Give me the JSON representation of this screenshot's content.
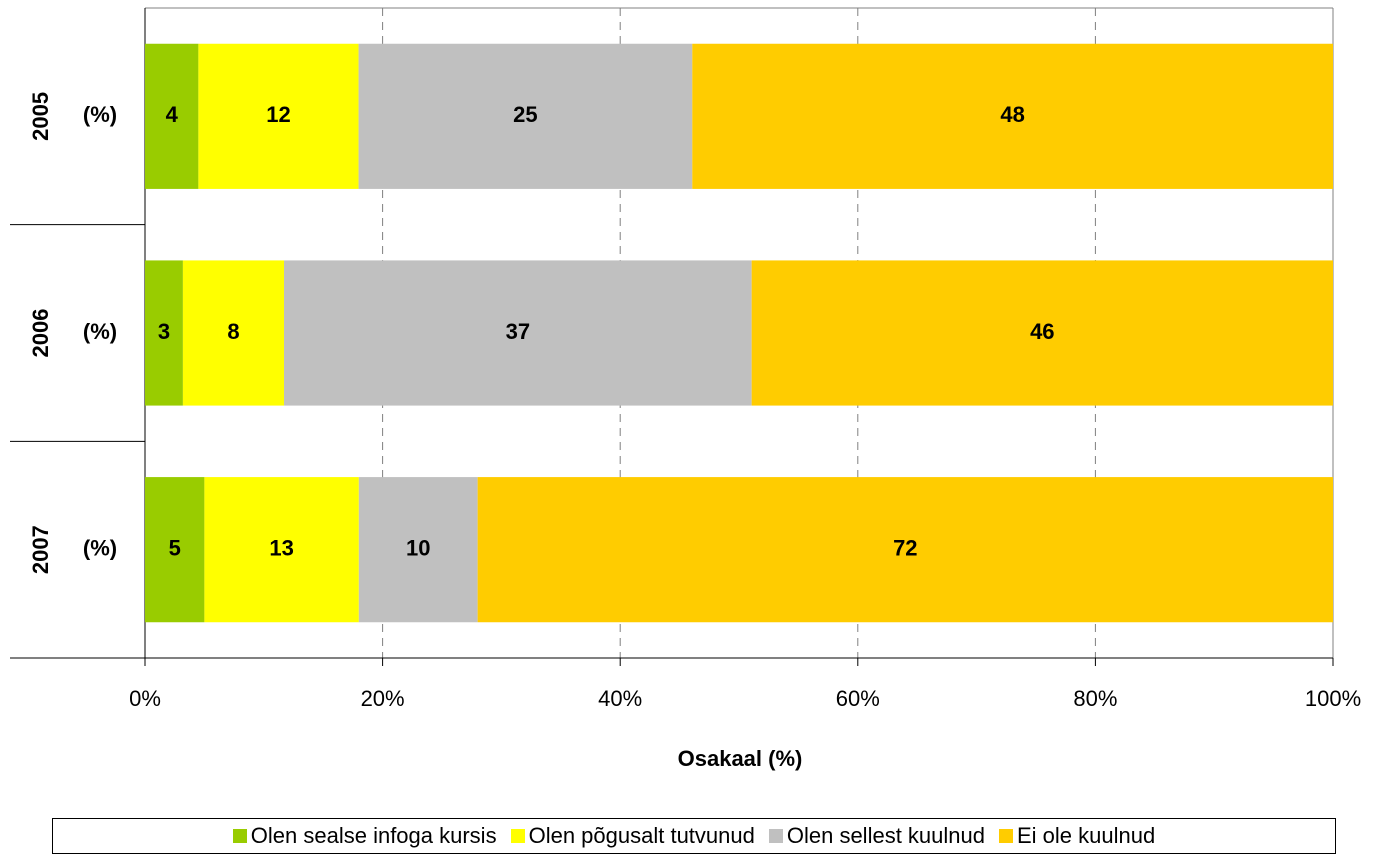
{
  "chart_data": {
    "type": "bar",
    "orientation": "horizontal",
    "stacked": "percent",
    "categories": [
      "2005",
      "2006",
      "2007"
    ],
    "category_sublabels": [
      "(%)",
      "(%)",
      "(%)"
    ],
    "series": [
      {
        "name": "Olen sealse infoga kursis",
        "color": "#99cc00",
        "values": [
          4,
          3,
          5
        ]
      },
      {
        "name": "Olen põgusalt tutvunud",
        "color": "#ffff00",
        "values": [
          12,
          8,
          13
        ]
      },
      {
        "name": "Olen sellest kuulnud",
        "color": "#c0c0c0",
        "values": [
          25,
          37,
          10
        ]
      },
      {
        "name": "Ei ole kuulnud",
        "color": "#ffcc00",
        "values": [
          48,
          46,
          72
        ]
      }
    ],
    "xlabel": "Osakaal (%)",
    "xlim": [
      0,
      100
    ],
    "xticks": [
      {
        "value": 0,
        "label": "0%"
      },
      {
        "value": 20,
        "label": "20%"
      },
      {
        "value": 40,
        "label": "40%"
      },
      {
        "value": 60,
        "label": "60%"
      },
      {
        "value": 80,
        "label": "80%"
      },
      {
        "value": 100,
        "label": "100%"
      }
    ],
    "grid": true,
    "legend": "bottom"
  }
}
